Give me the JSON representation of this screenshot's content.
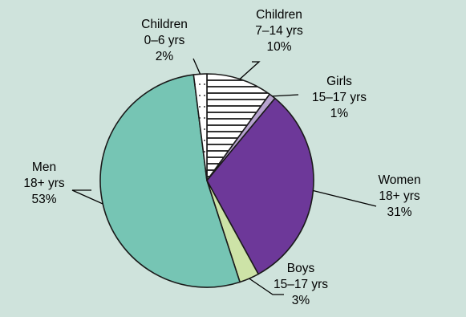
{
  "chart_data": {
    "type": "pie",
    "title": "",
    "start_angle_deg": 0,
    "direction": "clockwise",
    "slices": [
      {
        "label_lines": [
          "Children",
          "7–14 yrs",
          "10%"
        ],
        "value": 10,
        "color": "#ffffff",
        "pattern": "horizontal-stripes"
      },
      {
        "label_lines": [
          "Girls",
          "15–17 yrs",
          "1%"
        ],
        "value": 1,
        "color": "#b7a3cf",
        "pattern": "none"
      },
      {
        "label_lines": [
          "Women",
          "18+ yrs",
          "31%"
        ],
        "value": 31,
        "color": "#6d3899",
        "pattern": "none"
      },
      {
        "label_lines": [
          "Boys",
          "15–17 yrs",
          "3%"
        ],
        "value": 3,
        "color": "#cde3a7",
        "pattern": "none"
      },
      {
        "label_lines": [
          "Men",
          "18+ yrs",
          "53%"
        ],
        "value": 53,
        "color": "#76c5b4",
        "pattern": "none"
      },
      {
        "label_lines": [
          "Children",
          "0–6 yrs",
          "2%"
        ],
        "value": 2,
        "color": "#ffffff",
        "pattern": "dots"
      }
    ]
  },
  "colors": {
    "background": "#cfe3dc",
    "outline": "#1a1a1a",
    "stripes": "#000000"
  }
}
